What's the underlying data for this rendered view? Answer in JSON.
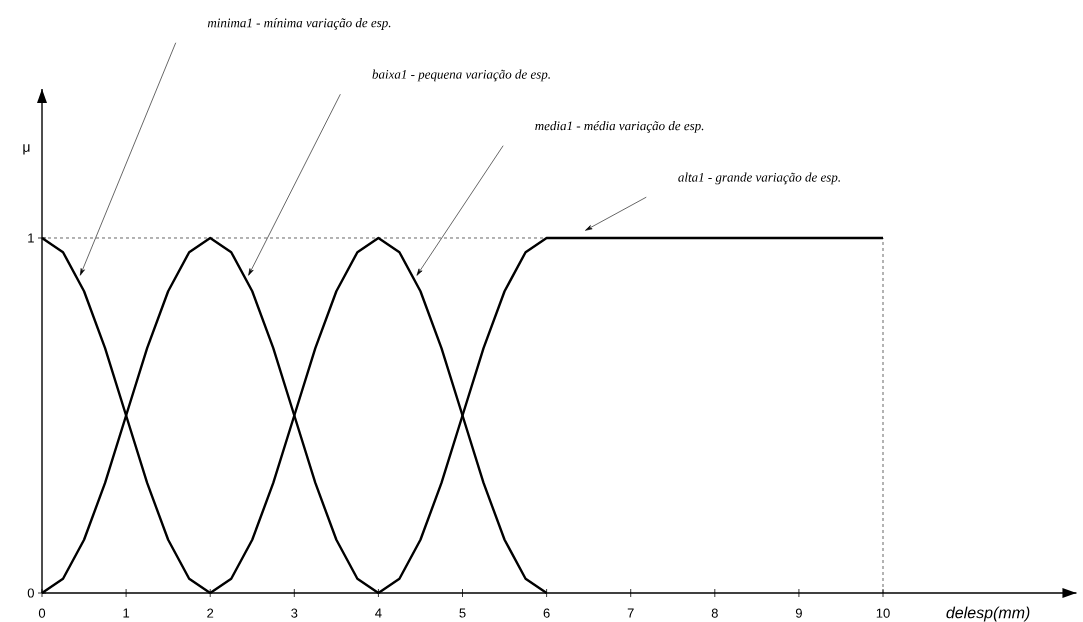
{
  "chart_data": {
    "type": "line",
    "xlabel": "delesp(mm)",
    "ylabel": "μ",
    "marker": "none",
    "line_style": "solid",
    "grid": false,
    "xlim": [
      0,
      12.3
    ],
    "ylim": [
      0,
      1.42
    ],
    "xticks": [
      0,
      1,
      2,
      3,
      4,
      5,
      6,
      7,
      8,
      9,
      10
    ],
    "yticks": [
      0,
      1
    ],
    "series": [
      {
        "color": "#000000",
        "x": [
          0,
          0.25,
          0.5,
          0.75,
          1,
          1.25,
          1.5,
          1.75,
          2
        ],
        "values": [
          1,
          0.96,
          0.85,
          0.69,
          0.5,
          0.31,
          0.15,
          0.04,
          0
        ]
      },
      {
        "color": "#000000",
        "x": [
          0,
          0.25,
          0.5,
          0.75,
          1,
          1.25,
          1.5,
          1.75,
          2,
          2.25,
          2.5,
          2.75,
          3,
          3.25,
          3.5,
          3.75,
          4
        ],
        "values": [
          0,
          0.04,
          0.15,
          0.31,
          0.5,
          0.69,
          0.85,
          0.96,
          1,
          0.96,
          0.85,
          0.69,
          0.5,
          0.31,
          0.15,
          0.04,
          0
        ]
      },
      {
        "color": "#000000",
        "x": [
          2,
          2.25,
          2.5,
          2.75,
          3,
          3.25,
          3.5,
          3.75,
          4,
          4.25,
          4.5,
          4.75,
          5,
          5.25,
          5.5,
          5.75,
          6
        ],
        "values": [
          0,
          0.04,
          0.15,
          0.31,
          0.5,
          0.69,
          0.85,
          0.96,
          1,
          0.96,
          0.85,
          0.69,
          0.5,
          0.31,
          0.15,
          0.04,
          0
        ]
      },
      {
        "color": "#000000",
        "x": [
          4,
          4.25,
          4.5,
          4.75,
          5,
          5.25,
          5.5,
          5.75,
          6,
          10
        ],
        "values": [
          0,
          0.04,
          0.15,
          0.31,
          0.5,
          0.69,
          0.85,
          0.96,
          1,
          1
        ]
      }
    ],
    "ref_lines": [
      {
        "axis": "y",
        "value": 1,
        "line_style": "dashed"
      },
      {
        "axis": "x",
        "value": 10,
        "line_style": "dashed"
      }
    ],
    "annotations": [
      "minima1 - mínima variação de esp.",
      "baixa1 - pequena variação de esp.",
      "media1 - média variação de esp.",
      "alta1 - grande variação de esp."
    ]
  }
}
